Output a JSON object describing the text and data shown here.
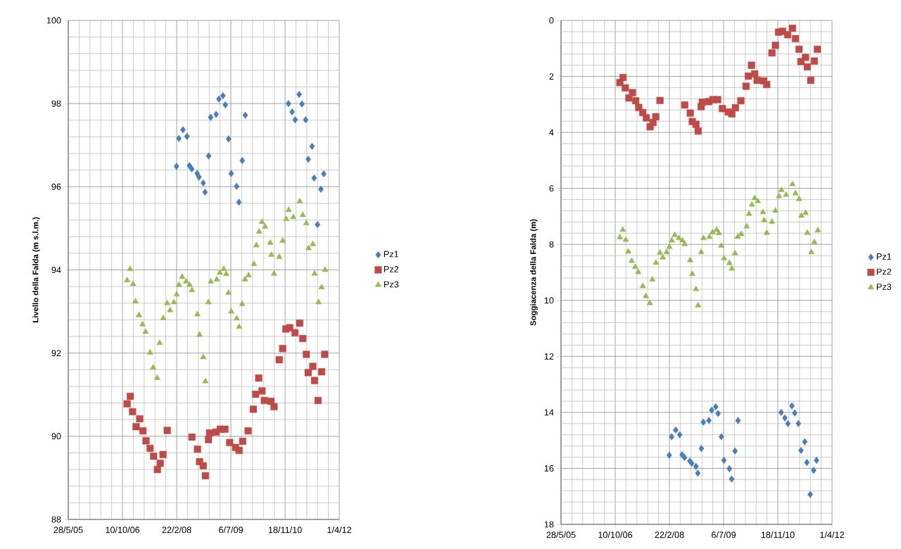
{
  "chart_data": [
    {
      "type": "scatter",
      "ylabel": "Livello della Falda (m s.l.m.)",
      "xlim": [
        "2005-05-28",
        "2012-04-01"
      ],
      "xticks": [
        {
          "value": "2005-05-28",
          "label": "28/5/05"
        },
        {
          "value": "2006-10-10",
          "label": "10/10/06"
        },
        {
          "value": "2008-02-22",
          "label": "22/2/08"
        },
        {
          "value": "2009-07-06",
          "label": "6/7/09"
        },
        {
          "value": "2010-11-18",
          "label": "18/11/10"
        },
        {
          "value": "2012-04-01",
          "label": "1/4/12"
        }
      ],
      "ylim": [
        88,
        100
      ],
      "yticks": [
        88,
        90,
        92,
        94,
        96,
        98,
        100
      ],
      "grid": true,
      "legend": "right",
      "series": [
        {
          "name": "Pz1",
          "color": "#4a7ebb",
          "marker": "diamond",
          "x": [
            "2008-02-20",
            "2008-03-13",
            "2008-04-20",
            "2008-05-27",
            "2008-06-18",
            "2008-07-10",
            "2008-08-29",
            "2008-09-15",
            "2008-10-24",
            "2008-11-10",
            "2008-12-13",
            "2008-12-31",
            "2009-02-20",
            "2009-03-18",
            "2009-04-24",
            "2009-05-16",
            "2009-06-15",
            "2009-07-09",
            "2009-08-28",
            "2009-09-18",
            "2009-10-19",
            "2009-11-16",
            "2010-12-19",
            "2011-01-22",
            "2011-02-19",
            "2011-03-28",
            "2011-04-23",
            "2011-05-27",
            "2011-06-20",
            "2011-07-25",
            "2011-08-13",
            "2011-09-13",
            "2011-10-15",
            "2011-11-10"
          ],
          "values": [
            96.49,
            97.16,
            97.37,
            97.21,
            96.51,
            96.43,
            96.32,
            96.23,
            96.09,
            95.87,
            96.74,
            97.67,
            97.74,
            98.11,
            98.19,
            97.97,
            97.15,
            96.32,
            96.01,
            95.63,
            96.63,
            97.72,
            98.0,
            97.8,
            97.61,
            98.22,
            97.99,
            97.61,
            96.66,
            96.97,
            96.21,
            95.09,
            95.94,
            96.31
          ]
        },
        {
          "name": "Pz2",
          "color": "#be4b48",
          "marker": "square",
          "x": [
            "2006-11-22",
            "2006-12-21",
            "2007-01-11",
            "2007-02-13",
            "2007-03-18",
            "2007-04-17",
            "2007-05-15",
            "2007-06-21",
            "2007-07-24",
            "2007-08-28",
            "2007-09-23",
            "2007-10-19",
            "2007-11-27",
            "2008-07-12",
            "2008-09-01",
            "2008-09-20",
            "2008-10-24",
            "2008-11-13",
            "2008-12-11",
            "2008-12-22",
            "2009-02-19",
            "2009-03-30",
            "2009-05-12",
            "2009-06-25",
            "2009-08-18",
            "2009-09-20",
            "2009-10-23",
            "2009-12-12",
            "2010-01-29",
            "2010-02-19",
            "2010-03-20",
            "2010-04-19",
            "2010-05-11",
            "2010-07-11",
            "2010-08-08",
            "2010-09-25",
            "2010-10-27",
            "2010-11-25",
            "2010-12-31",
            "2011-02-17",
            "2011-04-02",
            "2011-04-30",
            "2011-06-02",
            "2011-06-19",
            "2011-08-01",
            "2011-08-17",
            "2011-09-18",
            "2011-10-21",
            "2011-11-18"
          ],
          "values": [
            90.78,
            90.96,
            90.59,
            90.23,
            90.42,
            90.13,
            89.89,
            89.71,
            89.52,
            89.2,
            89.35,
            89.56,
            90.14,
            89.98,
            89.69,
            89.39,
            89.29,
            89.05,
            89.92,
            90.08,
            90.1,
            90.17,
            90.17,
            89.85,
            89.73,
            89.66,
            89.88,
            90.13,
            90.65,
            91.01,
            91.4,
            91.09,
            90.86,
            90.84,
            90.71,
            91.84,
            92.11,
            92.58,
            92.61,
            92.49,
            92.72,
            92.35,
            91.97,
            91.53,
            91.68,
            91.34,
            90.86,
            91.55,
            91.97
          ]
        },
        {
          "name": "Pz3",
          "color": "#98b954",
          "marker": "triangle",
          "x": [
            "2006-11-22",
            "2006-12-19",
            "2007-01-16",
            "2007-02-07",
            "2007-03-11",
            "2007-04-13",
            "2007-05-11",
            "2007-06-21",
            "2007-07-20",
            "2007-08-26",
            "2007-09-18",
            "2007-10-21",
            "2007-11-27",
            "2007-12-23",
            "2008-01-27",
            "2008-02-22",
            "2008-03-15",
            "2008-04-12",
            "2008-05-19",
            "2008-06-21",
            "2008-07-12",
            "2008-08-31",
            "2008-09-20",
            "2008-10-24",
            "2008-11-13",
            "2008-12-11",
            "2009-01-02",
            "2009-02-26",
            "2009-03-26",
            "2009-05-02",
            "2009-05-24",
            "2009-06-14",
            "2009-07-10",
            "2009-08-29",
            "2009-09-20",
            "2009-10-18",
            "2009-11-13",
            "2009-12-16",
            "2010-02-04",
            "2010-02-26",
            "2010-03-24",
            "2010-04-19",
            "2010-05-17",
            "2010-07-04",
            "2010-07-15",
            "2010-08-08",
            "2010-09-25",
            "2010-10-27",
            "2010-11-29",
            "2010-12-21",
            "2011-02-02",
            "2011-04-02",
            "2011-04-30",
            "2011-06-02",
            "2011-06-23",
            "2011-08-01",
            "2011-08-17",
            "2011-09-23",
            "2011-10-21",
            "2011-11-23"
          ],
          "values": [
            93.75,
            94.02,
            93.66,
            93.24,
            92.91,
            92.69,
            92.51,
            92.01,
            91.65,
            91.4,
            92.24,
            92.84,
            93.2,
            93.03,
            93.22,
            93.41,
            93.64,
            93.83,
            93.72,
            93.64,
            93.51,
            92.93,
            92.44,
            91.9,
            91.32,
            93.22,
            93.72,
            93.77,
            93.93,
            94.02,
            93.9,
            93.45,
            93.0,
            92.83,
            92.63,
            93.18,
            93.77,
            93.87,
            94.14,
            94.59,
            94.92,
            95.15,
            95.04,
            94.65,
            94.36,
            93.91,
            94.31,
            94.7,
            95.22,
            95.44,
            95.27,
            95.65,
            95.32,
            95.12,
            94.52,
            94.62,
            93.91,
            93.22,
            93.58,
            94.0
          ]
        }
      ]
    },
    {
      "type": "scatter",
      "ylabel": "Soggiacenza della Falda  (m)",
      "xlim": [
        "2005-05-28",
        "2012-04-01"
      ],
      "xticks": [
        {
          "value": "2005-05-28",
          "label": "28/5/05"
        },
        {
          "value": "2006-10-10",
          "label": "10/10/06"
        },
        {
          "value": "2008-02-22",
          "label": "22/2/08"
        },
        {
          "value": "2009-07-06",
          "label": "6/7/09"
        },
        {
          "value": "2010-11-18",
          "label": "18/11/10"
        },
        {
          "value": "2012-04-01",
          "label": "1/4/12"
        }
      ],
      "ylim": [
        18,
        0
      ],
      "yticks": [
        0,
        2,
        4,
        6,
        8,
        10,
        12,
        14,
        16,
        18
      ],
      "grid": true,
      "legend": "right",
      "series": [
        {
          "name": "Pz1",
          "color": "#4a7ebb",
          "marker": "diamond",
          "x": [
            "2008-02-20",
            "2008-03-13",
            "2008-04-20",
            "2008-05-27",
            "2008-06-18",
            "2008-07-10",
            "2008-08-29",
            "2008-09-15",
            "2008-10-24",
            "2008-11-10",
            "2008-12-13",
            "2008-12-31",
            "2009-02-20",
            "2009-03-18",
            "2009-04-24",
            "2009-05-16",
            "2009-06-15",
            "2009-07-09",
            "2009-08-28",
            "2009-09-18",
            "2009-10-19",
            "2009-11-16",
            "2010-12-19",
            "2011-01-22",
            "2011-02-19",
            "2011-03-28",
            "2011-04-23",
            "2011-05-27",
            "2011-06-20",
            "2011-07-25",
            "2011-08-13",
            "2011-09-13",
            "2011-10-15",
            "2011-11-10"
          ],
          "values": [
            15.53,
            14.87,
            14.63,
            14.8,
            15.51,
            15.61,
            15.74,
            15.82,
            15.93,
            16.17,
            15.29,
            14.35,
            14.29,
            13.92,
            13.8,
            14.04,
            14.87,
            15.71,
            16.01,
            16.38,
            15.38,
            14.29,
            14.0,
            14.2,
            14.4,
            13.77,
            14.02,
            14.4,
            15.36,
            15.05,
            15.79,
            16.93,
            16.07,
            15.71
          ]
        },
        {
          "name": "Pz2",
          "color": "#be4b48",
          "marker": "square",
          "x": [
            "2006-11-22",
            "2006-12-21",
            "2007-01-11",
            "2007-02-13",
            "2007-03-18",
            "2007-04-17",
            "2007-05-15",
            "2007-06-21",
            "2007-07-24",
            "2007-08-28",
            "2007-09-23",
            "2007-10-19",
            "2007-11-27",
            "2008-07-12",
            "2008-09-01",
            "2008-09-20",
            "2008-10-24",
            "2008-11-13",
            "2008-12-11",
            "2008-12-22",
            "2009-02-19",
            "2009-03-30",
            "2009-05-12",
            "2009-06-25",
            "2009-08-18",
            "2009-09-20",
            "2009-10-23",
            "2009-12-12",
            "2010-01-29",
            "2010-02-19",
            "2010-03-20",
            "2010-04-19",
            "2010-05-11",
            "2010-07-11",
            "2010-08-08",
            "2010-09-25",
            "2010-10-27",
            "2010-11-25",
            "2010-12-31",
            "2011-02-17",
            "2011-04-02",
            "2011-04-30",
            "2011-06-02",
            "2011-06-19",
            "2011-08-01",
            "2011-08-17",
            "2011-09-18",
            "2011-10-21",
            "2011-11-18"
          ],
          "values": [
            2.22,
            2.04,
            2.41,
            2.77,
            2.58,
            2.87,
            3.11,
            3.29,
            3.48,
            3.8,
            3.65,
            3.44,
            2.86,
            3.02,
            3.31,
            3.61,
            3.71,
            3.95,
            3.08,
            2.92,
            2.9,
            2.83,
            2.83,
            3.15,
            3.27,
            3.34,
            3.12,
            2.87,
            2.35,
            1.99,
            1.6,
            1.91,
            2.14,
            2.16,
            2.29,
            1.16,
            0.89,
            0.42,
            0.39,
            0.51,
            0.28,
            0.65,
            1.03,
            1.47,
            1.32,
            1.66,
            2.14,
            1.45,
            1.03
          ]
        },
        {
          "name": "Pz3",
          "color": "#98b954",
          "marker": "triangle",
          "x": [
            "2006-11-22",
            "2006-12-19",
            "2007-01-16",
            "2007-02-07",
            "2007-03-11",
            "2007-04-13",
            "2007-05-11",
            "2007-06-21",
            "2007-07-20",
            "2007-08-26",
            "2007-09-18",
            "2007-10-21",
            "2007-11-27",
            "2007-12-23",
            "2008-01-27",
            "2008-02-22",
            "2008-03-15",
            "2008-04-12",
            "2008-05-19",
            "2008-06-21",
            "2008-07-12",
            "2008-08-31",
            "2008-09-20",
            "2008-10-24",
            "2008-11-13",
            "2008-12-11",
            "2009-01-02",
            "2009-02-26",
            "2009-03-26",
            "2009-05-02",
            "2009-05-24",
            "2009-06-14",
            "2009-07-10",
            "2009-08-29",
            "2009-09-20",
            "2009-10-18",
            "2009-11-13",
            "2009-12-16",
            "2010-02-04",
            "2010-02-26",
            "2010-03-24",
            "2010-04-19",
            "2010-05-17",
            "2010-07-04",
            "2010-07-15",
            "2010-08-08",
            "2010-09-25",
            "2010-10-27",
            "2010-11-29",
            "2010-12-21",
            "2011-02-02",
            "2011-04-02",
            "2011-04-30",
            "2011-06-02",
            "2011-06-23",
            "2011-08-01",
            "2011-08-17",
            "2011-09-23",
            "2011-10-21",
            "2011-11-23"
          ],
          "values": [
            7.75,
            7.48,
            7.84,
            8.26,
            8.59,
            8.81,
            8.99,
            9.49,
            9.85,
            10.1,
            9.26,
            8.66,
            8.3,
            8.47,
            8.28,
            8.09,
            7.86,
            7.67,
            7.78,
            7.86,
            7.99,
            8.57,
            9.06,
            9.6,
            10.18,
            8.28,
            7.78,
            7.73,
            7.57,
            7.48,
            7.6,
            8.05,
            8.5,
            8.67,
            8.87,
            8.32,
            7.73,
            7.63,
            7.36,
            6.91,
            6.58,
            6.35,
            6.46,
            6.85,
            7.14,
            7.59,
            7.19,
            6.8,
            6.28,
            6.06,
            6.23,
            5.85,
            6.18,
            6.38,
            6.98,
            6.88,
            7.59,
            8.28,
            7.92,
            7.5
          ]
        }
      ]
    }
  ]
}
